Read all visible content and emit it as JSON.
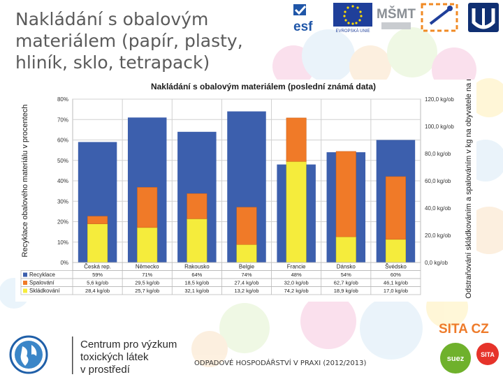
{
  "slide": {
    "title": "Nakládání s obalovým\nmateriálem (papír, plasty,\nhliník, sklo, tetrapack)",
    "footer": "ODPADOVÉ HOSPODÁŘSTVÍ V PRAXI (2012/2013)"
  },
  "logos": {
    "esf": "esf",
    "eu": "EVROPSKÁ UNIE",
    "msmt": "MŠMT",
    "center_line1": "Centrum pro výzkum",
    "center_line2": "toxických látek",
    "center_line3": "v prostředí",
    "sita": "SITA CZ",
    "suez": "suez",
    "sita_small": "SITA"
  },
  "colors": {
    "recyklace": "#3c5fad",
    "spalovani": "#f07a28",
    "skladkovani": "#f5ec3c"
  },
  "chart_data": {
    "type": "bar",
    "title": "Nakládání s obalovým materiálem (poslední známá data)",
    "ylabel": "Recyklace obalového materiálu v procentech",
    "y2label": "Odstraňování skládkováním a spalováním v kg na obyvatele na rok",
    "ylim": [
      0,
      80
    ],
    "y2lim": [
      0,
      120
    ],
    "yticks": [
      "0%",
      "10%",
      "20%",
      "30%",
      "40%",
      "50%",
      "60%",
      "70%",
      "80%"
    ],
    "y2ticks": [
      "0,0 kg/ob",
      "20,0 kg/ob",
      "40,0 kg/ob",
      "60,0 kg/ob",
      "80,0 kg/ob",
      "100,0 kg/ob",
      "120,0 kg/ob"
    ],
    "categories": [
      "Česká rep.",
      "Německo",
      "Rakousko",
      "Belgie",
      "Francie",
      "Dánsko",
      "Švédsko"
    ],
    "series": [
      {
        "name": "Recyklace",
        "axis": "left",
        "values": [
          59,
          71,
          64,
          74,
          48,
          54,
          60
        ],
        "labels": [
          "59%",
          "71%",
          "64%",
          "74%",
          "48%",
          "54%",
          "60%"
        ]
      },
      {
        "name": "Spalování",
        "axis": "right",
        "values": [
          5.6,
          29.5,
          18.5,
          27.4,
          32.0,
          62.7,
          46.1
        ],
        "labels": [
          "5,6 kg/ob",
          "29,5 kg/ob",
          "18,5 kg/ob",
          "27,4 kg/ob",
          "32,0 kg/ob",
          "62,7 kg/ob",
          "46,1 kg/ob"
        ]
      },
      {
        "name": "Skládkování",
        "axis": "right",
        "values": [
          28.4,
          25.7,
          32.1,
          13.2,
          74.2,
          18.9,
          17.0
        ],
        "labels": [
          "28,4 kg/ob",
          "25,7 kg/ob",
          "32,1 kg/ob",
          "13,2 kg/ob",
          "74,2 kg/ob",
          "18,9 kg/ob",
          "17,0 kg/ob"
        ]
      }
    ]
  }
}
